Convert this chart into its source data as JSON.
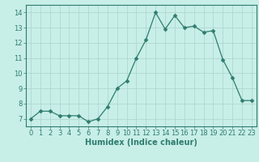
{
  "x": [
    0,
    1,
    2,
    3,
    4,
    5,
    6,
    7,
    8,
    9,
    10,
    11,
    12,
    13,
    14,
    15,
    16,
    17,
    18,
    19,
    20,
    21,
    22,
    23
  ],
  "y": [
    7.0,
    7.5,
    7.5,
    7.2,
    7.2,
    7.2,
    6.8,
    7.0,
    7.8,
    9.0,
    9.5,
    11.0,
    12.2,
    14.0,
    12.9,
    13.8,
    13.0,
    13.1,
    12.7,
    12.8,
    10.9,
    9.7,
    8.2,
    8.2
  ],
  "line_color": "#2e7d6e",
  "marker": "D",
  "marker_size": 2.5,
  "bg_color": "#c8eee8",
  "grid_color": "#aad4cc",
  "axis_color": "#2e7d6e",
  "xlabel": "Humidex (Indice chaleur)",
  "xlim": [
    -0.5,
    23.5
  ],
  "ylim": [
    6.5,
    14.5
  ],
  "yticks": [
    7,
    8,
    9,
    10,
    11,
    12,
    13,
    14
  ],
  "xticks": [
    0,
    1,
    2,
    3,
    4,
    5,
    6,
    7,
    8,
    9,
    10,
    11,
    12,
    13,
    14,
    15,
    16,
    17,
    18,
    19,
    20,
    21,
    22,
    23
  ],
  "tick_font_size": 6,
  "label_font_size": 7
}
